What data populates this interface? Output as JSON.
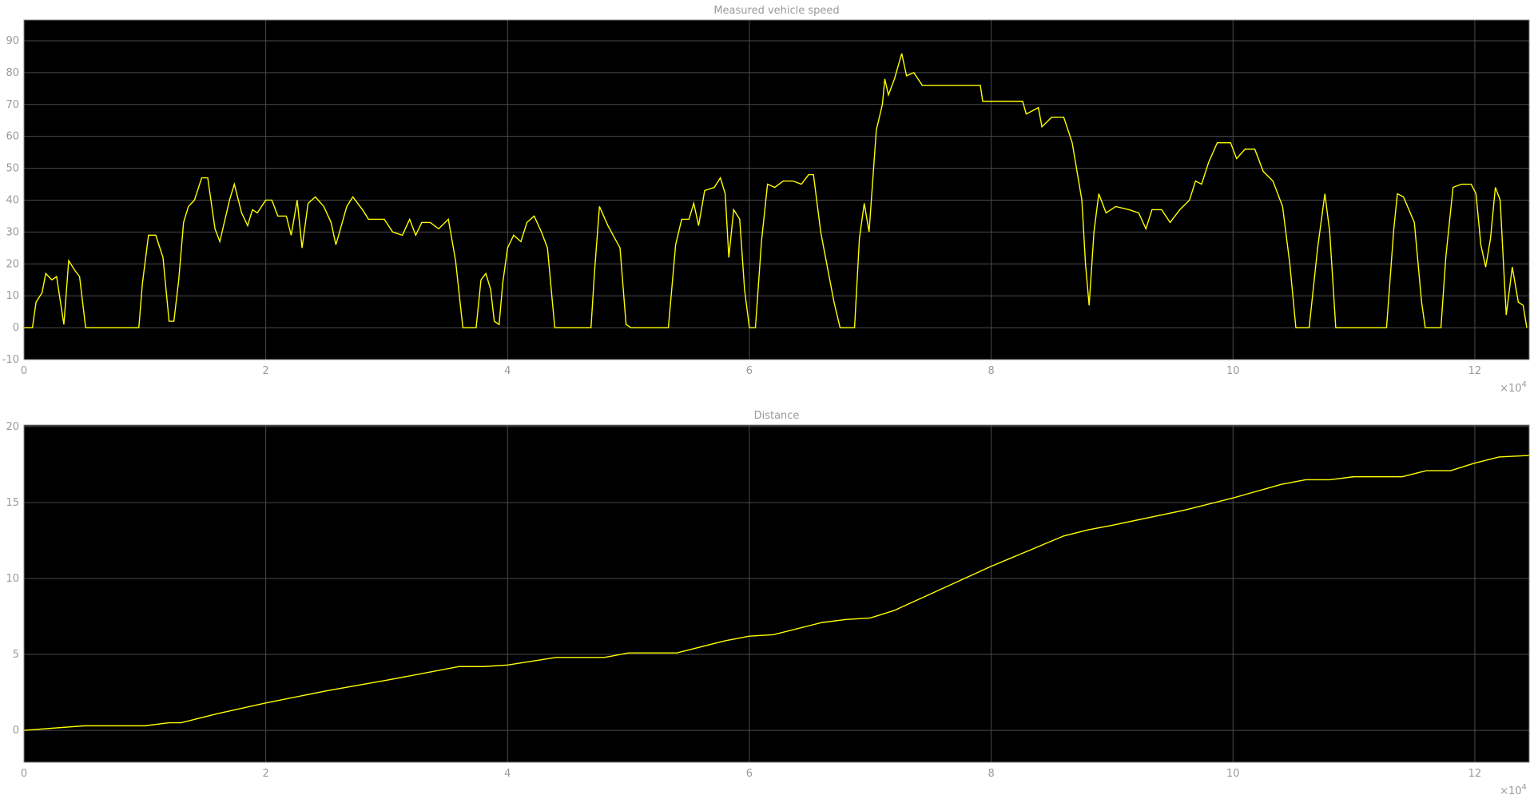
{
  "chart_data": [
    {
      "type": "line",
      "title": "Measured vehicle speed",
      "x_multiplier": {
        "base": "×10",
        "power": "4"
      },
      "xlim": [
        0,
        12.45
      ],
      "xticks": [
        0,
        2,
        4,
        6,
        8,
        10,
        12
      ],
      "ylim": [
        -10,
        96.5
      ],
      "yticks": [
        -10,
        0,
        10,
        20,
        30,
        40,
        50,
        60,
        70,
        80,
        90
      ],
      "grid": true,
      "x": [
        0,
        0.07,
        0.1,
        0.15,
        0.18,
        0.23,
        0.27,
        0.33,
        0.37,
        0.42,
        0.46,
        0.51,
        0.95,
        0.98,
        1.03,
        1.09,
        1.15,
        1.2,
        1.24,
        1.28,
        1.32,
        1.36,
        1.41,
        1.47,
        1.52,
        1.58,
        1.62,
        1.7,
        1.74,
        1.8,
        1.85,
        1.89,
        1.93,
        2.0,
        2.05,
        2.1,
        2.17,
        2.21,
        2.26,
        2.3,
        2.35,
        2.41,
        2.48,
        2.54,
        2.58,
        2.61,
        2.67,
        2.72,
        2.8,
        2.85,
        2.98,
        3.05,
        3.13,
        3.19,
        3.24,
        3.29,
        3.36,
        3.43,
        3.51,
        3.57,
        3.63,
        3.74,
        3.78,
        3.82,
        3.86,
        3.89,
        3.93,
        3.96,
        4.0,
        4.05,
        4.11,
        4.16,
        4.22,
        4.28,
        4.33,
        4.39,
        4.69,
        4.72,
        4.76,
        4.83,
        4.93,
        4.98,
        5.02,
        5.33,
        5.39,
        5.44,
        5.5,
        5.54,
        5.58,
        5.63,
        5.71,
        5.76,
        5.8,
        5.83,
        5.87,
        5.92,
        5.96,
        6.0,
        6.05,
        6.1,
        6.15,
        6.21,
        6.28,
        6.36,
        6.43,
        6.49,
        6.53,
        6.59,
        6.65,
        6.7,
        6.75,
        6.87,
        6.91,
        6.95,
        6.99,
        7.05,
        7.1,
        7.12,
        7.15,
        7.2,
        7.26,
        7.3,
        7.36,
        7.43,
        7.48,
        7.54,
        7.91,
        7.93,
        8.26,
        8.29,
        8.39,
        8.42,
        8.5,
        8.6,
        8.67,
        8.75,
        8.78,
        8.81,
        8.85,
        8.89,
        8.95,
        9.03,
        9.14,
        9.22,
        9.28,
        9.33,
        9.41,
        9.48,
        9.56,
        9.64,
        9.69,
        9.74,
        9.8,
        9.87,
        9.98,
        10.03,
        10.1,
        10.18,
        10.25,
        10.33,
        10.41,
        10.47,
        10.52,
        10.63,
        10.7,
        10.76,
        10.8,
        10.85,
        11.27,
        11.33,
        11.36,
        11.41,
        11.5,
        11.56,
        11.59,
        11.72,
        11.76,
        11.82,
        11.89,
        11.97,
        12.01,
        12.05,
        12.09,
        12.13,
        12.17,
        12.21,
        12.24,
        12.26,
        12.31,
        12.36,
        12.4,
        12.43
      ],
      "series": [
        {
          "color": "#ffff00",
          "values": [
            0,
            0,
            8,
            11,
            17,
            15,
            16,
            1,
            21,
            18,
            16,
            0,
            0,
            14,
            29,
            29,
            22,
            2,
            2,
            15,
            33,
            38,
            40,
            47,
            47,
            31,
            27,
            40,
            45,
            36,
            32,
            37,
            36,
            40,
            40,
            35,
            35,
            29,
            40,
            25,
            39,
            41,
            38,
            33,
            26,
            30,
            38,
            41,
            37,
            34,
            34,
            30,
            29,
            34,
            29,
            33,
            33,
            31,
            34,
            21,
            0,
            0,
            15,
            17,
            12,
            2,
            1,
            14,
            25,
            29,
            27,
            33,
            35,
            30,
            25,
            0,
            0,
            18,
            38,
            32,
            25,
            1,
            0,
            0,
            26,
            34,
            34,
            39,
            32,
            43,
            44,
            47,
            42,
            22,
            37,
            34,
            12,
            0,
            0,
            27,
            45,
            44,
            46,
            46,
            45,
            48,
            48,
            30,
            18,
            8,
            0,
            0,
            28,
            39,
            30,
            62,
            70,
            78,
            73,
            78,
            86,
            79,
            80,
            76,
            76,
            76,
            76,
            71,
            71,
            67,
            69,
            63,
            66,
            66,
            58,
            40,
            20,
            7,
            30,
            42,
            36,
            38,
            37,
            36,
            31,
            37,
            37,
            33,
            37,
            40,
            46,
            45,
            52,
            58,
            58,
            53,
            56,
            56,
            49,
            46,
            38,
            20,
            0,
            0,
            25,
            42,
            30,
            0,
            0,
            31,
            42,
            41,
            33,
            8,
            0,
            0,
            22,
            44,
            45,
            45,
            42,
            26,
            19,
            28,
            44,
            40,
            18,
            4,
            19,
            8,
            7,
            0
          ]
        }
      ]
    },
    {
      "type": "line",
      "title": "Distance",
      "x_multiplier": {
        "base": "×10",
        "power": "4"
      },
      "xlim": [
        0,
        12.45
      ],
      "xticks": [
        0,
        2,
        4,
        6,
        8,
        10,
        12
      ],
      "ylim": [
        -2.1,
        20.1
      ],
      "yticks": [
        0,
        5,
        10,
        15,
        20
      ],
      "grid": true,
      "x": [
        0,
        0.5,
        1.0,
        1.2,
        1.3,
        1.6,
        2.0,
        2.5,
        3.0,
        3.6,
        3.8,
        4.0,
        4.4,
        4.8,
        5.0,
        5.4,
        5.8,
        6.0,
        6.2,
        6.6,
        6.8,
        7.0,
        7.2,
        8.0,
        8.6,
        8.8,
        9.0,
        9.6,
        10.0,
        10.4,
        10.6,
        10.8,
        11.0,
        11.4,
        11.6,
        11.8,
        12.0,
        12.2,
        12.45
      ],
      "series": [
        {
          "color": "#ffff00",
          "values": [
            0,
            0.3,
            0.3,
            0.5,
            0.5,
            1.1,
            1.8,
            2.6,
            3.3,
            4.2,
            4.2,
            4.3,
            4.8,
            4.8,
            5.1,
            5.1,
            5.9,
            6.2,
            6.3,
            7.1,
            7.3,
            7.4,
            7.9,
            10.8,
            12.8,
            13.2,
            13.5,
            14.5,
            15.3,
            16.2,
            16.5,
            16.5,
            16.7,
            16.7,
            17.1,
            17.1,
            17.6,
            18.0,
            18.1
          ]
        }
      ]
    }
  ]
}
